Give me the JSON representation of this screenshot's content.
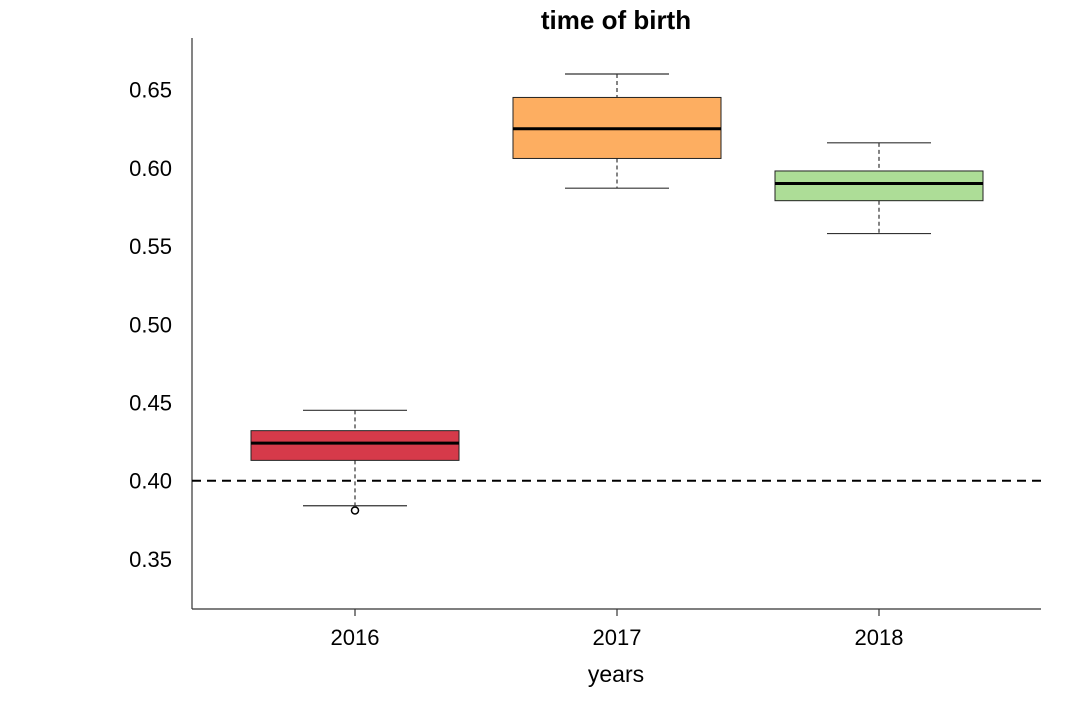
{
  "chart_data": {
    "type": "box",
    "title": "time of birth",
    "xlabel": "years",
    "ylabel": "",
    "categories": [
      "2016",
      "2017",
      "2018"
    ],
    "ylim": [
      0.318,
      0.683
    ],
    "yticks": [
      0.35,
      0.4,
      0.45,
      0.5,
      0.55,
      0.6,
      0.65
    ],
    "ytick_labels": [
      "0.35",
      "0.40",
      "0.45",
      "0.50",
      "0.55",
      "0.60",
      "0.65"
    ],
    "reference_line": {
      "y": 0.4,
      "style": "dashed"
    },
    "grid": false,
    "boxes": [
      {
        "category": "2016",
        "whisker_low": 0.384,
        "q1": 0.413,
        "median": 0.424,
        "q3": 0.432,
        "whisker_high": 0.445,
        "outliers": [
          0.381
        ],
        "color": "#d63a4a"
      },
      {
        "category": "2017",
        "whisker_low": 0.587,
        "q1": 0.606,
        "median": 0.625,
        "q3": 0.645,
        "whisker_high": 0.66,
        "outliers": [],
        "color": "#fdae61"
      },
      {
        "category": "2018",
        "whisker_low": 0.558,
        "q1": 0.579,
        "median": 0.59,
        "q3": 0.598,
        "whisker_high": 0.616,
        "outliers": [],
        "color": "#addd97"
      }
    ]
  }
}
